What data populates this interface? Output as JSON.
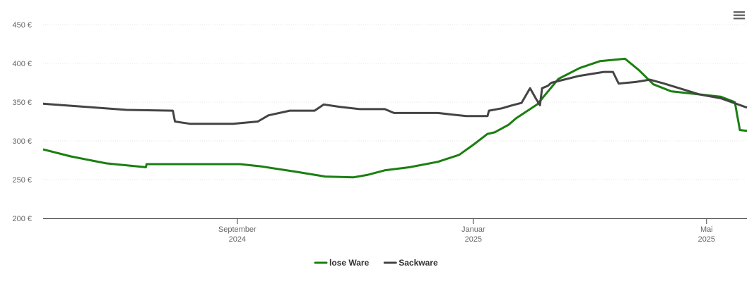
{
  "chart_data": {
    "type": "line",
    "xlim": [
      2024.393,
      2025.386
    ],
    "xticks": [
      {
        "value": 2024.667,
        "label": "September 2024"
      },
      {
        "value": 2025.0,
        "label": "Januar 2025"
      },
      {
        "value": 2025.329,
        "label": "Mai 2025"
      }
    ],
    "ylim": [
      200,
      450
    ],
    "yticks": [
      {
        "value": 200,
        "label": "200 €"
      },
      {
        "value": 250,
        "label": "250 €"
      },
      {
        "value": 300,
        "label": "300 €"
      },
      {
        "value": 350,
        "label": "350 €"
      },
      {
        "value": 400,
        "label": "400 €"
      },
      {
        "value": 450,
        "label": "450 €"
      }
    ],
    "grid": true,
    "legend": "bottom",
    "series": [
      {
        "name": "lose Ware",
        "color": "#1a7f10",
        "x": [
          2024.393,
          2024.432,
          2024.482,
          2024.538,
          2024.539,
          2024.591,
          2024.671,
          2024.701,
          2024.751,
          2024.791,
          2024.831,
          2024.85,
          2024.875,
          2024.91,
          2024.95,
          2024.98,
          2025.0,
          2025.02,
          2025.03,
          2025.05,
          2025.06,
          2025.09,
          2025.12,
          2025.15,
          2025.179,
          2025.214,
          2025.234,
          2025.254,
          2025.279,
          2025.319,
          2025.349,
          2025.369,
          2025.376,
          2025.386
        ],
        "values": [
          289,
          280,
          271,
          266,
          270,
          270,
          270,
          267,
          260,
          254,
          253,
          256,
          262,
          266,
          273,
          282,
          295,
          309,
          311,
          321,
          329,
          347,
          380,
          394,
          403,
          406,
          391,
          373,
          364,
          360,
          357,
          350,
          314,
          313
        ]
      },
      {
        "name": "Sackware",
        "color": "#444444",
        "x": [
          2024.393,
          2024.452,
          2024.511,
          2024.576,
          2024.579,
          2024.601,
          2024.661,
          2024.696,
          2024.711,
          2024.741,
          2024.776,
          2024.789,
          2024.811,
          2024.84,
          2024.875,
          2024.888,
          2024.95,
          2024.99,
          2025.02,
          2025.022,
          2025.04,
          2025.055,
          2025.068,
          2025.08,
          2025.088,
          2025.094,
          2025.097,
          2025.105,
          2025.11,
          2025.15,
          2025.184,
          2025.197,
          2025.205,
          2025.229,
          2025.249,
          2025.269,
          2025.319,
          2025.349,
          2025.386
        ],
        "values": [
          348,
          344,
          340,
          339,
          325,
          322,
          322,
          325,
          333,
          339,
          339,
          347,
          344,
          341,
          341,
          336,
          336,
          332,
          332,
          339,
          342,
          346,
          349,
          368,
          355,
          346,
          368,
          371,
          375,
          384,
          389,
          389,
          374,
          376,
          379,
          374,
          360,
          355,
          343
        ]
      }
    ]
  }
}
